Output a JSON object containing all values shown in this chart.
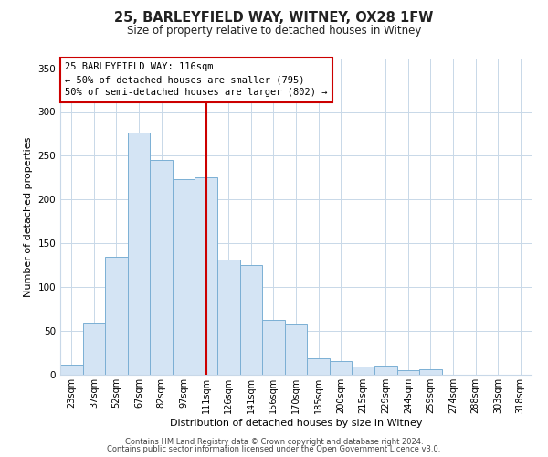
{
  "title": "25, BARLEYFIELD WAY, WITNEY, OX28 1FW",
  "subtitle": "Size of property relative to detached houses in Witney",
  "xlabel": "Distribution of detached houses by size in Witney",
  "ylabel": "Number of detached properties",
  "bar_labels": [
    "23sqm",
    "37sqm",
    "52sqm",
    "67sqm",
    "82sqm",
    "97sqm",
    "111sqm",
    "126sqm",
    "141sqm",
    "156sqm",
    "170sqm",
    "185sqm",
    "200sqm",
    "215sqm",
    "229sqm",
    "244sqm",
    "259sqm",
    "274sqm",
    "288sqm",
    "303sqm",
    "318sqm"
  ],
  "bar_values": [
    11,
    60,
    135,
    277,
    245,
    223,
    225,
    132,
    125,
    63,
    57,
    19,
    16,
    9,
    10,
    5,
    6,
    0,
    0,
    0,
    0
  ],
  "bar_color": "#d4e4f4",
  "bar_edge_color": "#7bafd4",
  "highlight_line_color": "#cc0000",
  "highlight_line_index": 6,
  "ylim": [
    0,
    360
  ],
  "yticks": [
    0,
    50,
    100,
    150,
    200,
    250,
    300,
    350
  ],
  "annotation_title": "25 BARLEYFIELD WAY: 116sqm",
  "annotation_line1": "← 50% of detached houses are smaller (795)",
  "annotation_line2": "50% of semi-detached houses are larger (802) →",
  "annotation_box_color": "#ffffff",
  "annotation_box_edge": "#cc0000",
  "footer1": "Contains HM Land Registry data © Crown copyright and database right 2024.",
  "footer2": "Contains public sector information licensed under the Open Government Licence v3.0.",
  "background_color": "#ffffff",
  "grid_color": "#c8d8e8"
}
